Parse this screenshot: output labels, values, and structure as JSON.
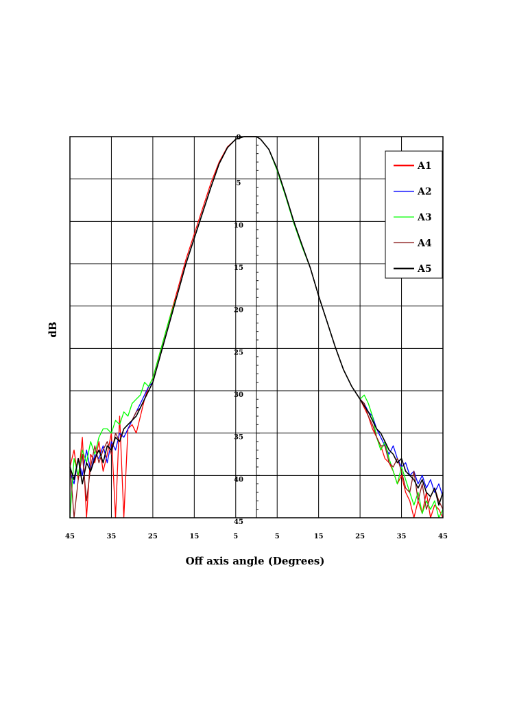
{
  "chart_data": {
    "type": "line",
    "xlabel": "Off axis angle (Degrees)",
    "ylabel": "dB",
    "xlim": [
      -45,
      45
    ],
    "ylim": [
      0,
      45
    ],
    "y_inverted": true,
    "grid": true,
    "legend_position": "top-right",
    "x_tick_labels": [
      "45",
      "35",
      "25",
      "15",
      "5",
      "5",
      "15",
      "25",
      "35",
      "45"
    ],
    "y_tick_labels": [
      "0",
      "5",
      "10",
      "15",
      "20",
      "25",
      "30",
      "35",
      "40",
      "45"
    ],
    "series": [
      {
        "name": "A1",
        "color": "#ff0000",
        "x": [
          -45,
          -44,
          -43,
          -42,
          -41,
          -40,
          -39,
          -38,
          -37,
          -36,
          -35,
          -34,
          -33,
          -32,
          -31,
          -30,
          -29,
          -28,
          -27,
          -26,
          -25,
          -23,
          -21,
          -19,
          -17,
          -15,
          -13,
          -11,
          -9,
          -7,
          -5,
          -3,
          -1,
          0,
          1,
          3,
          5,
          7,
          9,
          11,
          13,
          15,
          17,
          19,
          21,
          23,
          25,
          26,
          27,
          28,
          29,
          30,
          31,
          32,
          33,
          34,
          35,
          36,
          37,
          38,
          39,
          40,
          41,
          42,
          43,
          44,
          45
        ],
        "y": [
          39.0,
          37.0,
          40.5,
          35.5,
          45.0,
          37.5,
          38.5,
          36.0,
          39.5,
          37.5,
          35.0,
          45.0,
          33.0,
          45.0,
          34.5,
          34.0,
          35.0,
          33.0,
          31.0,
          29.5,
          28.5,
          25.0,
          21.5,
          18.0,
          14.5,
          11.5,
          8.5,
          5.5,
          3.0,
          1.2,
          0.3,
          0.0,
          0.0,
          0.0,
          0.3,
          1.5,
          3.8,
          6.8,
          10.0,
          12.8,
          15.5,
          18.8,
          21.8,
          24.8,
          27.5,
          29.5,
          31.0,
          32.0,
          33.0,
          34.5,
          35.5,
          36.5,
          38.0,
          38.5,
          39.5,
          41.0,
          40.0,
          42.0,
          43.0,
          45.0,
          43.0,
          44.5,
          42.0,
          45.0,
          43.5,
          44.0,
          45.0
        ]
      },
      {
        "name": "A2",
        "color": "#0000ff",
        "x": [
          -45,
          -44,
          -43,
          -42,
          -41,
          -40,
          -39,
          -38,
          -37,
          -36,
          -35,
          -34,
          -33,
          -32,
          -31,
          -30,
          -29,
          -28,
          -27,
          -26,
          -25,
          -23,
          -21,
          -19,
          -17,
          -15,
          -13,
          -11,
          -9,
          -7,
          -5,
          -3,
          -1,
          0,
          1,
          3,
          5,
          7,
          9,
          11,
          13,
          15,
          17,
          19,
          21,
          23,
          25,
          26,
          27,
          28,
          29,
          30,
          31,
          32,
          33,
          34,
          35,
          36,
          37,
          38,
          39,
          40,
          41,
          42,
          43,
          44,
          45
        ],
        "y": [
          39.5,
          41.0,
          38.0,
          40.0,
          37.0,
          39.5,
          37.5,
          38.0,
          36.5,
          38.5,
          36.0,
          37.0,
          35.0,
          35.5,
          34.5,
          33.5,
          32.5,
          31.5,
          30.5,
          29.5,
          29.0,
          25.5,
          22.0,
          18.5,
          15.0,
          12.0,
          9.0,
          6.0,
          3.2,
          1.3,
          0.3,
          0.0,
          0.0,
          0.0,
          0.3,
          1.5,
          3.8,
          6.8,
          10.0,
          12.8,
          15.5,
          18.8,
          21.8,
          24.8,
          27.5,
          29.5,
          31.0,
          31.5,
          32.5,
          33.0,
          34.5,
          35.5,
          36.5,
          37.5,
          36.5,
          38.0,
          39.0,
          38.5,
          40.0,
          39.5,
          41.0,
          40.0,
          41.5,
          40.5,
          42.0,
          41.0,
          42.5
        ]
      },
      {
        "name": "A3",
        "color": "#00ff00",
        "x": [
          -45,
          -44,
          -43,
          -42,
          -41,
          -40,
          -39,
          -38,
          -37,
          -36,
          -35,
          -34,
          -33,
          -32,
          -31,
          -30,
          -29,
          -28,
          -27,
          -26,
          -25,
          -23,
          -21,
          -19,
          -17,
          -15,
          -13,
          -11,
          -9,
          -7,
          -5,
          -3,
          -1,
          0,
          1,
          3,
          5,
          7,
          9,
          11,
          13,
          15,
          17,
          19,
          21,
          23,
          25,
          26,
          27,
          28,
          29,
          30,
          31,
          32,
          33,
          34,
          35,
          36,
          37,
          38,
          39,
          40,
          41,
          42,
          43,
          44,
          45
        ],
        "y": [
          45.0,
          38.0,
          40.0,
          37.0,
          38.5,
          36.0,
          37.5,
          35.5,
          34.5,
          34.5,
          35.0,
          33.5,
          34.0,
          32.5,
          33.0,
          31.5,
          31.0,
          30.5,
          29.0,
          29.5,
          28.5,
          25.0,
          21.5,
          18.5,
          15.0,
          12.0,
          9.0,
          6.0,
          3.2,
          1.3,
          0.3,
          0.0,
          0.0,
          0.0,
          0.3,
          1.5,
          4.0,
          7.0,
          10.2,
          13.0,
          15.5,
          18.8,
          21.8,
          24.8,
          27.5,
          29.5,
          31.0,
          30.5,
          31.5,
          33.0,
          35.5,
          37.0,
          36.0,
          38.0,
          39.5,
          41.0,
          39.0,
          40.5,
          42.0,
          43.5,
          42.0,
          44.5,
          43.0,
          44.0,
          43.0,
          45.0,
          44.0
        ]
      },
      {
        "name": "A4",
        "color": "#8b1a1a",
        "x": [
          -45,
          -44,
          -43,
          -42,
          -41,
          -40,
          -39,
          -38,
          -37,
          -36,
          -35,
          -34,
          -33,
          -32,
          -31,
          -30,
          -29,
          -28,
          -27,
          -26,
          -25,
          -23,
          -21,
          -19,
          -17,
          -15,
          -13,
          -11,
          -9,
          -7,
          -5,
          -3,
          -1,
          0,
          1,
          3,
          5,
          7,
          9,
          11,
          13,
          15,
          17,
          19,
          21,
          23,
          25,
          26,
          27,
          28,
          29,
          30,
          31,
          32,
          33,
          34,
          35,
          36,
          37,
          38,
          39,
          40,
          41,
          42,
          43,
          44,
          45
        ],
        "y": [
          38.5,
          45.0,
          40.5,
          37.5,
          43.0,
          39.0,
          36.5,
          38.5,
          37.0,
          36.0,
          37.5,
          35.0,
          36.0,
          34.5,
          34.0,
          33.5,
          32.5,
          32.0,
          31.0,
          30.0,
          29.0,
          25.5,
          22.0,
          18.5,
          15.0,
          12.0,
          9.0,
          6.0,
          3.2,
          1.3,
          0.3,
          0.0,
          0.0,
          0.0,
          0.3,
          1.5,
          3.8,
          6.8,
          10.0,
          12.8,
          15.5,
          18.8,
          21.8,
          24.8,
          27.5,
          29.5,
          31.0,
          31.5,
          33.0,
          34.0,
          35.5,
          36.5,
          36.5,
          38.5,
          39.0,
          38.0,
          39.5,
          41.5,
          42.0,
          39.5,
          43.0,
          41.0,
          44.0,
          42.5,
          41.5,
          43.0,
          44.0
        ]
      },
      {
        "name": "A5",
        "color": "#000000",
        "x": [
          -45,
          -44,
          -43,
          -42,
          -41,
          -40,
          -39,
          -38,
          -37,
          -36,
          -35,
          -34,
          -33,
          -32,
          -31,
          -30,
          -29,
          -28,
          -27,
          -26,
          -25,
          -23,
          -21,
          -19,
          -17,
          -15,
          -13,
          -11,
          -9,
          -7,
          -5,
          -3,
          -1,
          0,
          1,
          3,
          5,
          7,
          9,
          11,
          13,
          15,
          17,
          19,
          21,
          23,
          25,
          26,
          27,
          28,
          29,
          30,
          31,
          32,
          33,
          34,
          35,
          36,
          37,
          38,
          39,
          40,
          41,
          42,
          43,
          44,
          45
        ],
        "y": [
          39.0,
          40.5,
          38.0,
          41.0,
          38.5,
          39.5,
          38.0,
          37.0,
          38.5,
          36.5,
          37.0,
          35.5,
          36.0,
          34.5,
          34.0,
          33.5,
          33.0,
          32.0,
          31.0,
          30.0,
          29.0,
          25.5,
          22.0,
          18.5,
          15.0,
          12.0,
          9.0,
          6.0,
          3.2,
          1.3,
          0.3,
          0.0,
          0.0,
          0.0,
          0.3,
          1.5,
          3.8,
          6.8,
          10.0,
          12.8,
          15.5,
          18.8,
          21.8,
          24.8,
          27.5,
          29.5,
          31.0,
          31.8,
          32.5,
          33.5,
          34.5,
          35.0,
          36.0,
          37.0,
          37.5,
          38.5,
          38.0,
          39.5,
          40.0,
          40.5,
          41.5,
          40.5,
          42.0,
          42.5,
          41.5,
          43.5,
          42.0
        ]
      }
    ]
  }
}
